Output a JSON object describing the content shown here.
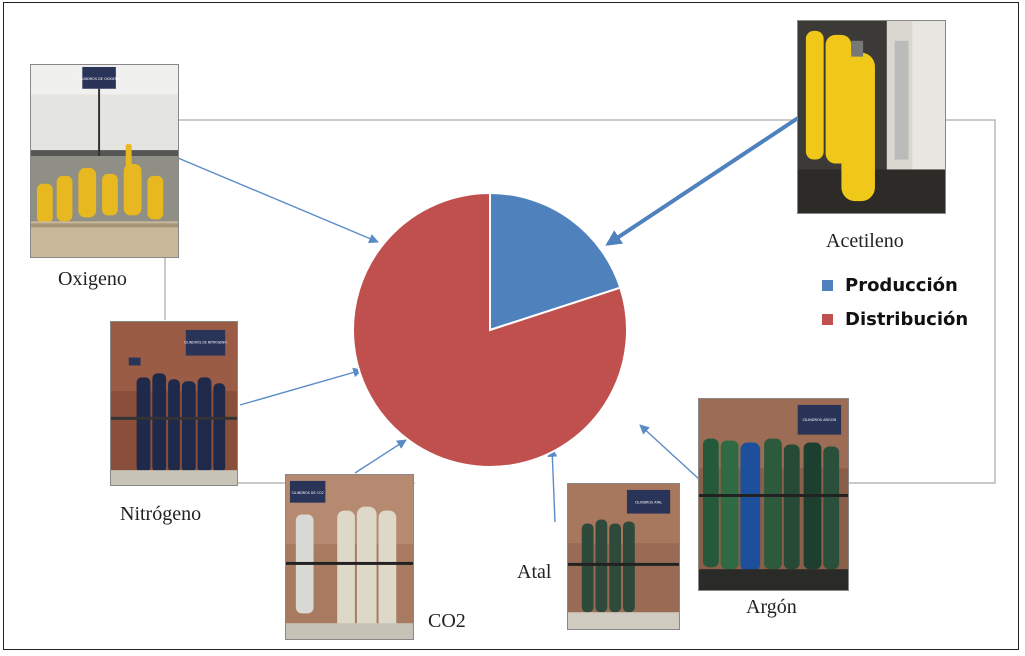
{
  "chart_data": {
    "type": "pie",
    "series": [
      {
        "name": "Producción",
        "value": 20,
        "color": "#4f81bd"
      },
      {
        "name": "Distribución",
        "value": 80,
        "color": "#c0504d"
      }
    ],
    "start_angle_deg": 0,
    "direction": "clockwise",
    "legend_position": "right"
  },
  "captions": {
    "oxigeno": "Oxigeno",
    "acetileno": "Acetileno",
    "nitrogeno": "Nitrógeno",
    "co2": "CO2",
    "atal": "Atal",
    "argon": "Argón"
  },
  "photo_signs": {
    "oxigeno": "CILINDROS DE OXIGENO",
    "nitrogeno": "CILINDROS DE NITROGENO",
    "co2": "CILINDROS DE CO2",
    "atal": "CILINDROS ATAL",
    "argon": "CILINDROS ARGON"
  },
  "colors": {
    "arrow": "#5b8bc6",
    "frame_line": "#b8b8b8"
  }
}
